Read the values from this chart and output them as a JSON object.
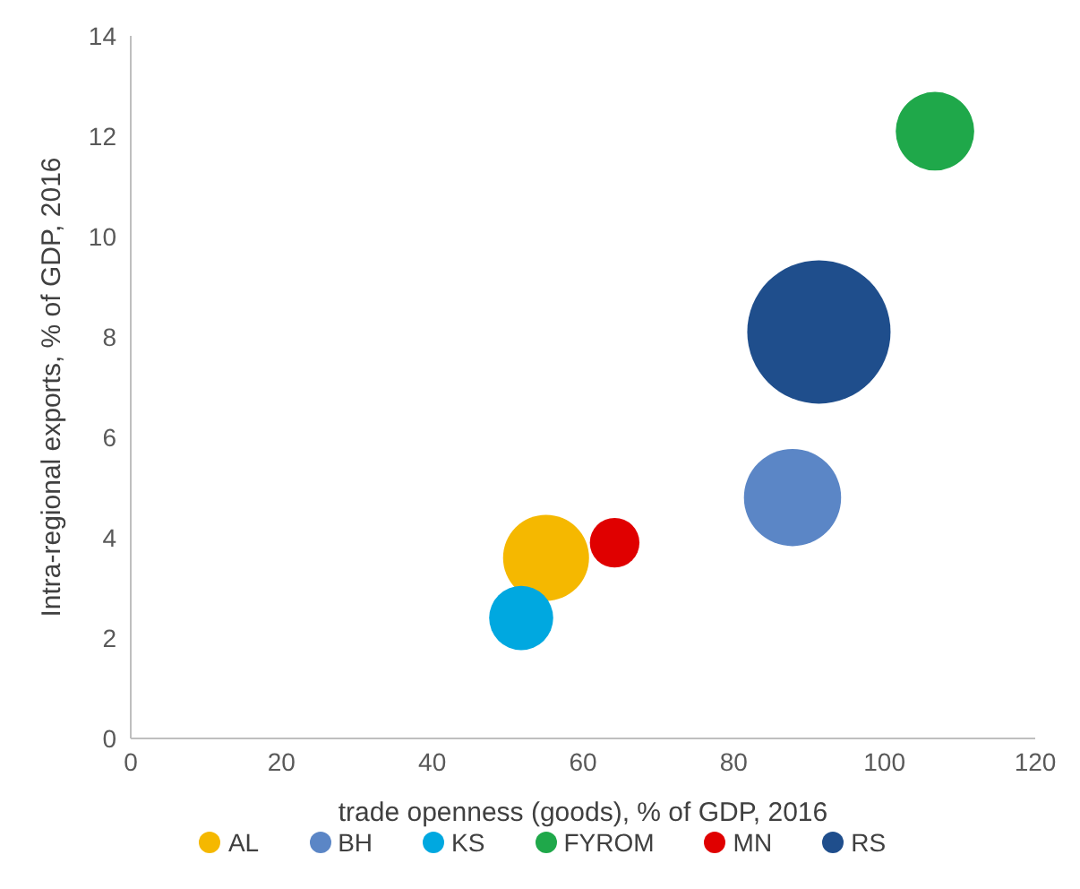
{
  "chart_data": {
    "type": "bubble",
    "xlabel": "trade openness (goods), % of GDP, 2016",
    "ylabel": "Intra-regional exports, % of GDP, 2016",
    "xlim": [
      0,
      120
    ],
    "xticks": [
      0,
      20,
      40,
      60,
      80,
      100,
      120
    ],
    "ylim": [
      0,
      14
    ],
    "yticks": [
      0,
      2,
      4,
      6,
      8,
      10,
      12,
      14
    ],
    "grid": false,
    "legend": "bottom",
    "series": [
      {
        "name": "AL",
        "color": "#f5b800",
        "x": [
          55.1
        ],
        "values": [
          3.6
        ],
        "sizes": [
          0.36
        ]
      },
      {
        "name": "BH",
        "color": "#5b86c6",
        "x": [
          87.8
        ],
        "values": [
          4.8
        ],
        "sizes": [
          0.46
        ]
      },
      {
        "name": "KS",
        "color": "#00a8e0",
        "x": [
          51.8
        ],
        "values": [
          2.4
        ],
        "sizes": [
          0.2
        ]
      },
      {
        "name": "FYROM",
        "color": "#1fa84a",
        "x": [
          106.7
        ],
        "values": [
          12.1
        ],
        "sizes": [
          0.3
        ]
      },
      {
        "name": "MN",
        "color": "#e00000",
        "x": [
          64.2
        ],
        "values": [
          3.9
        ],
        "sizes": [
          0.12
        ]
      },
      {
        "name": "RS",
        "color": "#1f4e8c",
        "x": [
          91.3
        ],
        "values": [
          8.1
        ],
        "sizes": [
          1
        ]
      }
    ]
  }
}
